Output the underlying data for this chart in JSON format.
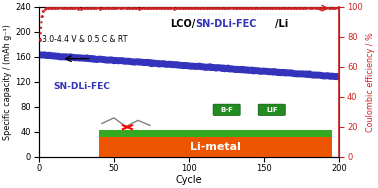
{
  "annotation": "3.0-4.4 V & 0.5 C & RT",
  "label_blue": "SN-DLi-FEC",
  "xlabel": "Cycle",
  "ylabel_left": "Specific capacity / (mAh g⁻¹)",
  "ylabel_right": "Coulombic efficiency / %",
  "xlim": [
    0,
    200
  ],
  "ylim_left": [
    0,
    240
  ],
  "ylim_right": [
    0,
    100
  ],
  "yticks_left": [
    0,
    40,
    80,
    120,
    160,
    200,
    240
  ],
  "yticks_right": [
    0,
    20,
    40,
    60,
    80,
    100
  ],
  "xticks": [
    0,
    50,
    100,
    150,
    200
  ],
  "capacity_start": 163,
  "capacity_end": 128,
  "background_color": "#ffffff",
  "line_blue_color": "#3333bb",
  "line_red_color": "#cc2222",
  "li_metal_color": "#ee5500",
  "li_metal_text": "Li-metal",
  "green_color": "#33aa22",
  "li_rect_x0": 40,
  "li_rect_x1": 195,
  "li_rect_y0": 0,
  "li_rect_y1": 32,
  "green_y0": 32,
  "green_y1": 42
}
